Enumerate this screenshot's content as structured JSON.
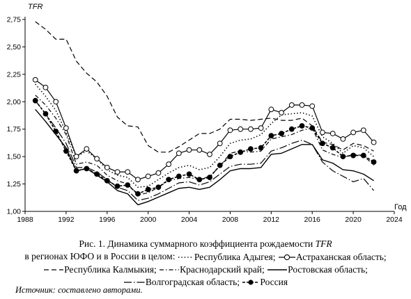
{
  "chart_data": {
    "type": "line",
    "ylabel": "TFR",
    "xlabel": "Год",
    "xlim": [
      1988,
      2024
    ],
    "ylim": [
      1.0,
      2.75
    ],
    "xticks": [
      1988,
      1992,
      1996,
      2000,
      2004,
      2008,
      2012,
      2016,
      2020,
      2024
    ],
    "yticks": [
      "1,00",
      "1,25",
      "1,50",
      "1,75",
      "2,00",
      "2,25",
      "2,50",
      "2,75"
    ],
    "x": [
      1989,
      1990,
      1991,
      1992,
      1993,
      1994,
      1995,
      1996,
      1997,
      1998,
      1999,
      2000,
      2001,
      2002,
      2003,
      2004,
      2005,
      2006,
      2007,
      2008,
      2009,
      2010,
      2011,
      2012,
      2013,
      2014,
      2015,
      2016,
      2017,
      2018,
      2019,
      2020,
      2021,
      2022
    ],
    "series": [
      {
        "name": "Республика Адыгея",
        "style": "dotted",
        "color": "#000000",
        "values": [
          2.16,
          2.05,
          1.92,
          1.72,
          1.5,
          1.55,
          1.48,
          1.38,
          1.33,
          1.31,
          1.22,
          1.23,
          1.29,
          1.35,
          1.4,
          1.42,
          1.38,
          1.4,
          1.5,
          1.62,
          1.65,
          1.66,
          1.7,
          1.8,
          1.88,
          1.89,
          1.9,
          1.87,
          1.68,
          1.62,
          1.53,
          1.6,
          1.58,
          1.5
        ]
      },
      {
        "name": "Астраханская область",
        "style": "circle-open",
        "color": "#000000",
        "values": [
          2.2,
          2.13,
          2.0,
          1.76,
          1.5,
          1.57,
          1.48,
          1.4,
          1.36,
          1.36,
          1.29,
          1.32,
          1.35,
          1.43,
          1.53,
          1.56,
          1.56,
          1.52,
          1.62,
          1.74,
          1.75,
          1.75,
          1.76,
          1.93,
          1.9,
          1.97,
          1.97,
          1.96,
          1.72,
          1.71,
          1.66,
          1.72,
          1.74,
          1.63
        ]
      },
      {
        "name": "Республика Калмыкия",
        "style": "dashed",
        "color": "#000000",
        "values": [
          2.73,
          2.66,
          2.57,
          2.57,
          2.37,
          2.26,
          2.18,
          2.05,
          1.86,
          1.78,
          1.77,
          1.6,
          1.54,
          1.54,
          1.59,
          1.65,
          1.71,
          1.71,
          1.75,
          1.84,
          1.84,
          1.83,
          1.84,
          1.85,
          1.83,
          1.83,
          1.85,
          1.78,
          1.63,
          1.61,
          1.56,
          1.62,
          1.6,
          1.55
        ]
      },
      {
        "name": "Краснодарский край",
        "style": "dashdot",
        "color": "#000000",
        "values": [
          2.06,
          1.97,
          1.85,
          1.7,
          1.43,
          1.45,
          1.42,
          1.33,
          1.28,
          1.25,
          1.15,
          1.17,
          1.22,
          1.28,
          1.3,
          1.31,
          1.29,
          1.32,
          1.41,
          1.53,
          1.55,
          1.54,
          1.55,
          1.66,
          1.68,
          1.7,
          1.74,
          1.76,
          1.56,
          1.52,
          1.49,
          1.52,
          1.51,
          1.42
        ]
      },
      {
        "name": "Ростовская область",
        "style": "solid",
        "color": "#000000",
        "values": [
          1.93,
          1.82,
          1.7,
          1.58,
          1.37,
          1.39,
          1.33,
          1.27,
          1.19,
          1.16,
          1.06,
          1.09,
          1.13,
          1.17,
          1.21,
          1.22,
          1.2,
          1.22,
          1.29,
          1.37,
          1.39,
          1.39,
          1.4,
          1.52,
          1.53,
          1.57,
          1.61,
          1.61,
          1.47,
          1.44,
          1.38,
          1.37,
          1.34,
          1.28
        ]
      },
      {
        "name": "Волгоградская область",
        "style": "long-dashdot",
        "color": "#000000",
        "values": [
          2.01,
          1.89,
          1.76,
          1.62,
          1.4,
          1.4,
          1.36,
          1.29,
          1.22,
          1.19,
          1.1,
          1.12,
          1.16,
          1.21,
          1.26,
          1.27,
          1.24,
          1.27,
          1.34,
          1.41,
          1.43,
          1.43,
          1.44,
          1.55,
          1.58,
          1.62,
          1.65,
          1.61,
          1.45,
          1.37,
          1.32,
          1.27,
          1.3,
          1.19
        ]
      },
      {
        "name": "Россия",
        "style": "circle-filled",
        "color": "#000000",
        "values": [
          2.01,
          1.89,
          1.73,
          1.55,
          1.37,
          1.39,
          1.34,
          1.28,
          1.23,
          1.24,
          1.16,
          1.2,
          1.22,
          1.29,
          1.32,
          1.34,
          1.29,
          1.31,
          1.42,
          1.5,
          1.54,
          1.57,
          1.58,
          1.69,
          1.71,
          1.75,
          1.78,
          1.76,
          1.62,
          1.58,
          1.5,
          1.51,
          1.51,
          1.45
        ]
      }
    ]
  },
  "caption": {
    "line1_prefix": "Рис. 1. Динамика суммарного коэффициента рождаемости ",
    "line1_em": "TFR",
    "line2_prefix": "в регионах ЮФО и в России в целом: ",
    "line2_suffix": "; ",
    "adygea": "Республика Адыгея;",
    "astrakhan": "Астраханская область;",
    "kalmykia": "Республика Калмыкия;",
    "krasnodar": "Краснодарский край;",
    "rostov": "Ростовская область;",
    "volgograd": "Волгоградская область;",
    "russia": "Россия"
  },
  "source": "Источник: составлено авторами."
}
